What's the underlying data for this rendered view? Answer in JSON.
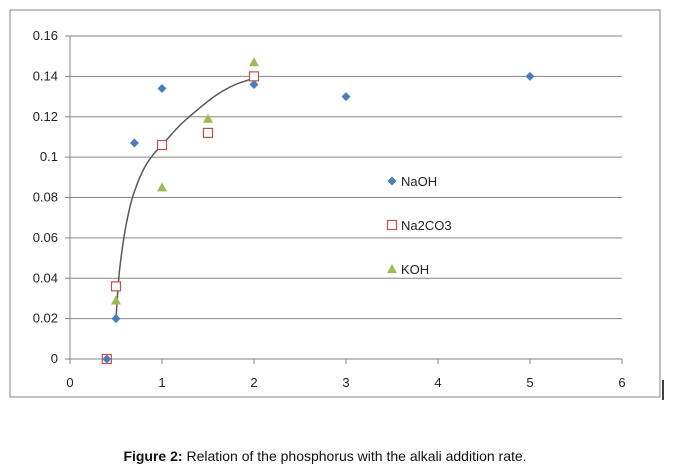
{
  "chart_data": {
    "type": "scatter",
    "title": "",
    "xlabel": "",
    "ylabel": "",
    "xlim": [
      0,
      6
    ],
    "ylim": [
      0,
      0.16
    ],
    "xticks": [
      "0",
      "1",
      "2",
      "3",
      "4",
      "5",
      "6"
    ],
    "yticks": [
      "0",
      "0.02",
      "0.04",
      "0.06",
      "0.08",
      "0.1",
      "0.12",
      "0.14",
      "0.16"
    ],
    "grid": "horizontal",
    "legend_placement": "center-right",
    "series": [
      {
        "name": "NaOH",
        "marker": "diamond",
        "color": "#4a7ebb",
        "x": [
          0.4,
          0.5,
          0.7,
          1.0,
          2.0,
          3.0,
          5.0
        ],
        "y": [
          0.0,
          0.02,
          0.107,
          0.134,
          0.136,
          0.13,
          0.14
        ]
      },
      {
        "name": "Na2CO3",
        "marker": "square-open",
        "color": "#c0504d",
        "x": [
          0.4,
          0.5,
          1.0,
          1.5,
          2.0
        ],
        "y": [
          0.0,
          0.036,
          0.106,
          0.112,
          0.14
        ]
      },
      {
        "name": "KOH",
        "marker": "triangle",
        "color": "#9bbb59",
        "x": [
          0.4,
          0.5,
          1.0,
          1.5,
          2.0
        ],
        "y": [
          0.0,
          0.029,
          0.085,
          0.119,
          0.147
        ]
      }
    ],
    "trendline": {
      "color": "#595959",
      "x": [
        0.5,
        0.53,
        0.56,
        0.6,
        0.65,
        0.7,
        0.8,
        0.9,
        1.0,
        1.2,
        1.4,
        1.6,
        1.8,
        2.0
      ],
      "y": [
        0.02,
        0.04,
        0.052,
        0.064,
        0.075,
        0.083,
        0.094,
        0.101,
        0.106,
        0.116,
        0.124,
        0.131,
        0.136,
        0.139
      ]
    }
  },
  "caption": {
    "label": "Figure 2:",
    "text": " Relation of the phosphorus with the alkali addition rate."
  }
}
